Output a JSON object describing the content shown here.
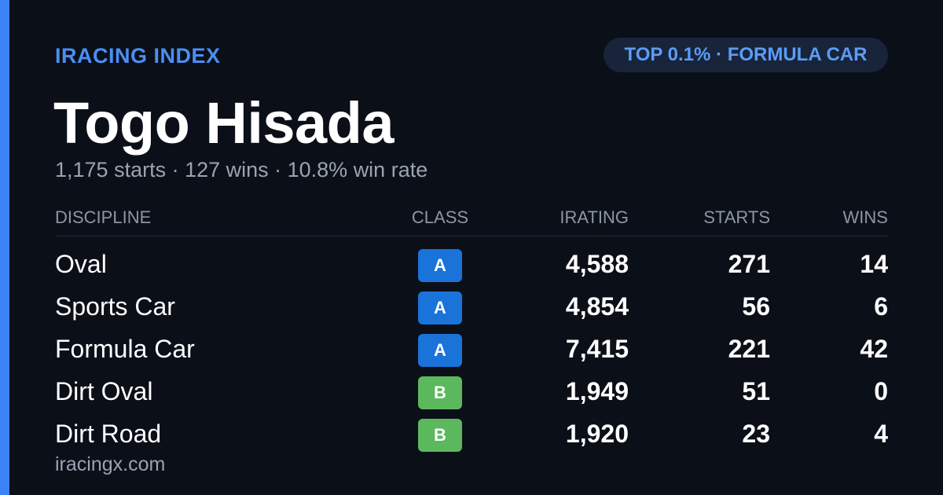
{
  "header": {
    "brand": "IRACING INDEX",
    "badge": "TOP 0.1% · FORMULA CAR",
    "name": "Togo Hisada",
    "summary": "1,175 starts · 127 wins · 10.8% win rate"
  },
  "table": {
    "columns": [
      "DISCIPLINE",
      "CLASS",
      "IRATING",
      "STARTS",
      "WINS"
    ],
    "rows": [
      [
        "Oval",
        "A",
        "4,588",
        "271",
        "14"
      ],
      [
        "Sports Car",
        "A",
        "4,854",
        "56",
        "6"
      ],
      [
        "Formula Car",
        "A",
        "7,415",
        "221",
        "42"
      ],
      [
        "Dirt Oval",
        "B",
        "1,949",
        "51",
        "0"
      ],
      [
        "Dirt Road",
        "B",
        "1,920",
        "23",
        "4"
      ]
    ]
  },
  "footer": {
    "site": "iracingx.com"
  }
}
